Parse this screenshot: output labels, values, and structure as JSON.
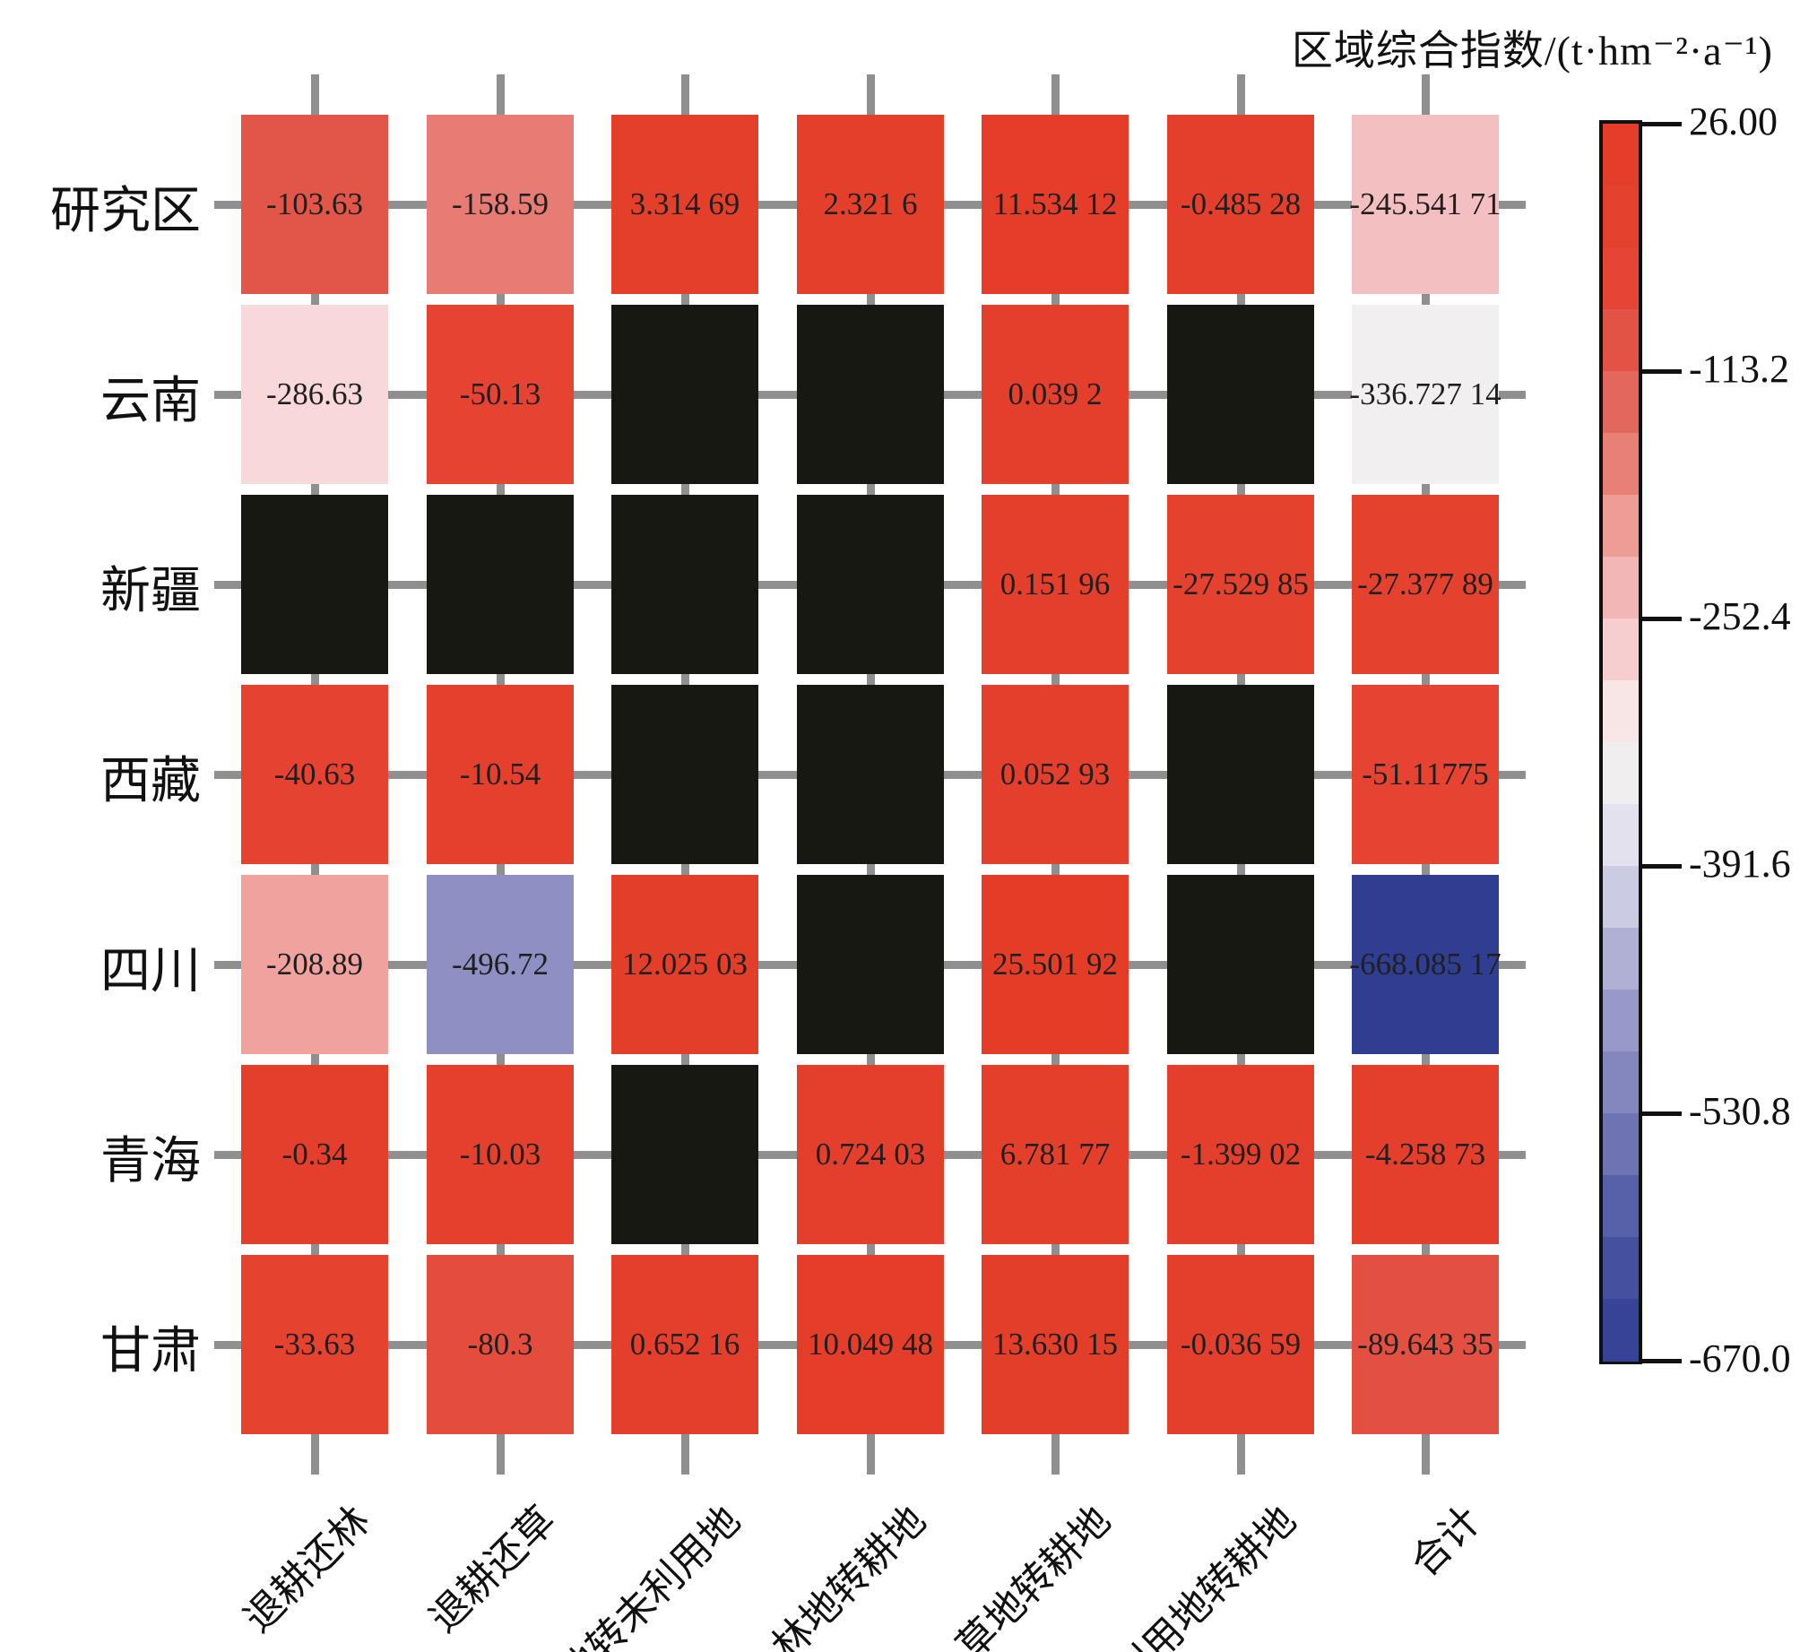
{
  "title": "区域综合指数/(t·hm⁻²·a⁻¹)",
  "chart_data": {
    "type": "heatmap",
    "rows": [
      "研究区",
      "云南",
      "新疆",
      "西藏",
      "四川",
      "青海",
      "甘肃"
    ],
    "columns": [
      "退耕还林",
      "退耕还草",
      "耕地转未利用地",
      "林地转耕地",
      "草地转耕地",
      "未利用地转耕地",
      "合计"
    ],
    "cell_labels": [
      [
        "-103.63",
        "-158.59",
        "3.314 69",
        "2.321 6",
        "11.534 12",
        "-0.485 28",
        "-245.541 71"
      ],
      [
        "-286.63",
        "-50.13",
        null,
        null,
        "0.039 2",
        null,
        "-336.727 14"
      ],
      [
        null,
        null,
        null,
        null,
        "0.151 96",
        "-27.529 85",
        "-27.377 89"
      ],
      [
        "-40.63",
        "-10.54",
        null,
        null,
        "0.052 93",
        null,
        "-51.11775"
      ],
      [
        "-208.89",
        "-496.72",
        "12.025 03",
        null,
        "25.501 92",
        null,
        "-668.085 17"
      ],
      [
        "-0.34",
        "-10.03",
        null,
        "0.724 03",
        "6.781 77",
        "-1.399 02",
        "-4.258 73"
      ],
      [
        "-33.63",
        "-80.3",
        "0.652 16",
        "10.049 48",
        "13.630 15",
        "-0.036 59",
        "-89.643 35"
      ]
    ],
    "values": [
      [
        -103.63,
        -158.59,
        3.31469,
        2.3216,
        11.53412,
        -0.48528,
        -245.54171
      ],
      [
        -286.63,
        -50.13,
        null,
        null,
        0.0392,
        null,
        -336.72714
      ],
      [
        null,
        null,
        null,
        null,
        0.15196,
        -27.52985,
        -27.37789
      ],
      [
        -40.63,
        -10.54,
        null,
        null,
        0.05293,
        null,
        -51.11775
      ],
      [
        -208.89,
        -496.72,
        12.02503,
        null,
        25.50192,
        null,
        -668.08517
      ],
      [
        -0.34,
        -10.03,
        null,
        0.72403,
        6.78177,
        -1.39902,
        -4.25873
      ],
      [
        -33.63,
        -80.3,
        0.65216,
        10.04948,
        13.63015,
        -0.03659,
        -89.64335
      ]
    ],
    "missing_value_color": "#181812",
    "colorbar": {
      "vmax": 26.0,
      "vmin": -670.0,
      "bands": 20,
      "tick_labels": [
        "26.00",
        "-113.2",
        "-252.4",
        "-391.6",
        "-530.8",
        "-670.0"
      ],
      "tick_values": [
        26.0,
        -113.2,
        -252.4,
        -391.6,
        -530.8,
        -670.0
      ]
    },
    "colormap_stops": [
      [
        26.0,
        "#e33d28"
      ],
      [
        -60.0,
        "#e64434"
      ],
      [
        -113.2,
        "#e05a4e"
      ],
      [
        -180.0,
        "#ec8b84"
      ],
      [
        -252.4,
        "#f5c4c6"
      ],
      [
        -290.0,
        "#f9dadb"
      ],
      [
        -322.0,
        "#f7f3f0"
      ],
      [
        -360.0,
        "#e9e8f0"
      ],
      [
        -391.6,
        "#d9d8ea"
      ],
      [
        -460.0,
        "#a3a3cf"
      ],
      [
        -530.8,
        "#7a7eb8"
      ],
      [
        -600.0,
        "#4c57a4"
      ],
      [
        -670.0,
        "#2f3d92"
      ]
    ],
    "grid_line_color": "#8f8f8f",
    "legend_position": "right",
    "xlabel": "",
    "ylabel": ""
  }
}
